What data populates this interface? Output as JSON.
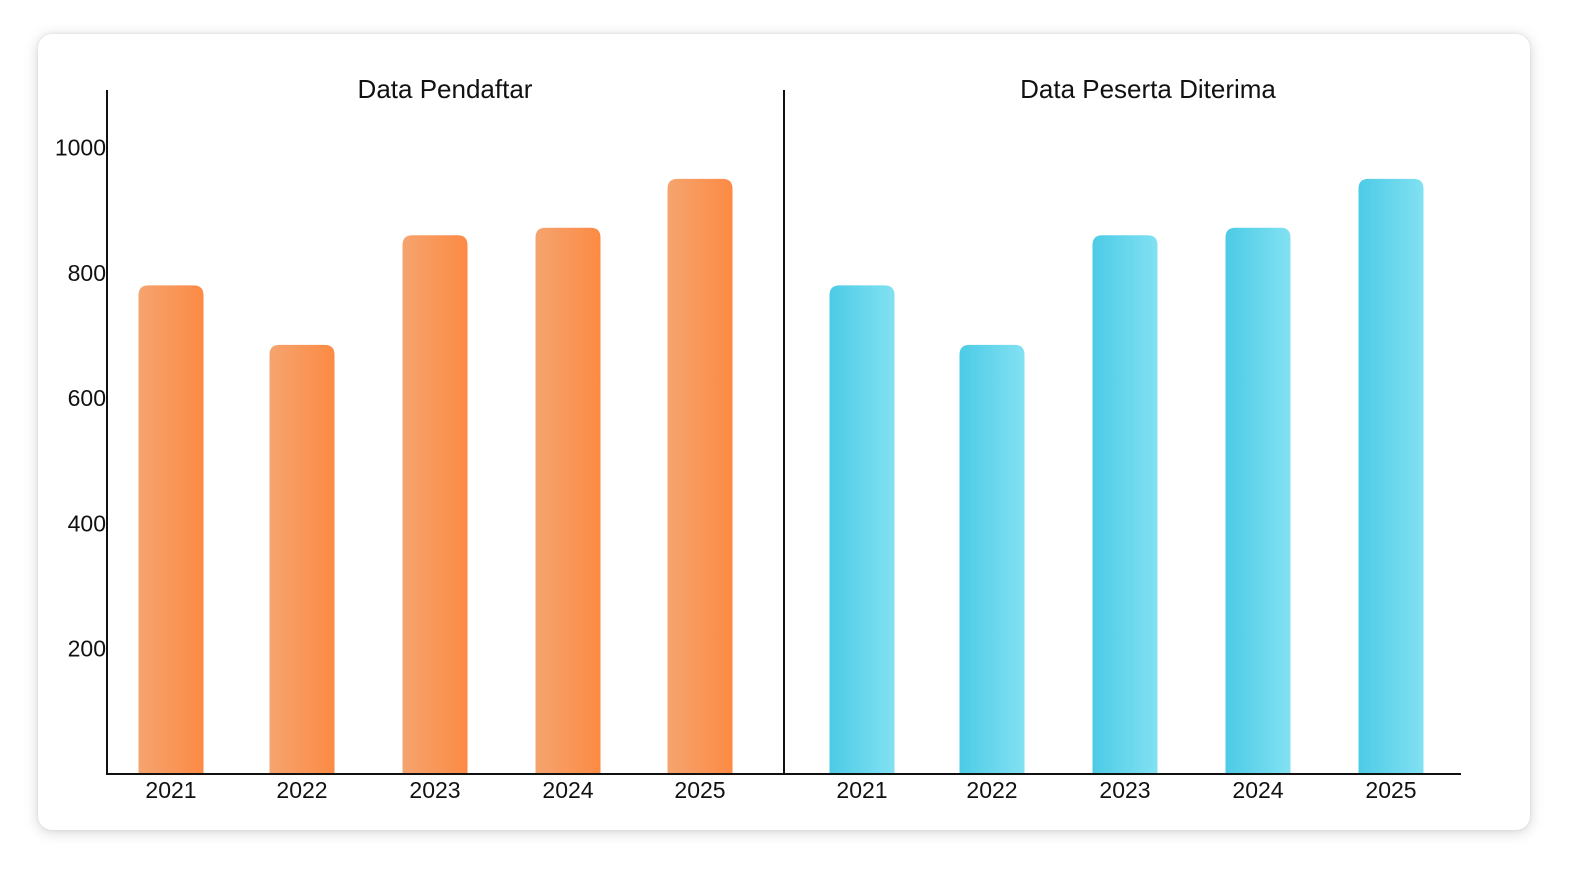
{
  "colors": {
    "left_bar_start": "#f5a46f",
    "left_bar_end": "#fc8a44",
    "right_bar_start": "#4ccbe6",
    "right_bar_end": "#82e1f2",
    "axis": "#111111"
  },
  "chart_data": [
    {
      "type": "bar",
      "title": "Data Pendaftar",
      "categories": [
        "2021",
        "2022",
        "2023",
        "2024",
        "2025"
      ],
      "values": [
        780,
        685,
        860,
        872,
        950
      ],
      "ylim": [
        0,
        1090
      ],
      "yticks": [
        "200",
        "400",
        "600",
        "800",
        "1000"
      ],
      "ytick_values": [
        200,
        400,
        600,
        800,
        1000
      ],
      "grid": false
    },
    {
      "type": "bar",
      "title": "Data Peserta Diterima",
      "categories": [
        "2021",
        "2022",
        "2023",
        "2024",
        "2025"
      ],
      "values": [
        780,
        685,
        860,
        872,
        950
      ],
      "ylim": [
        0,
        1090
      ],
      "grid": false
    }
  ]
}
